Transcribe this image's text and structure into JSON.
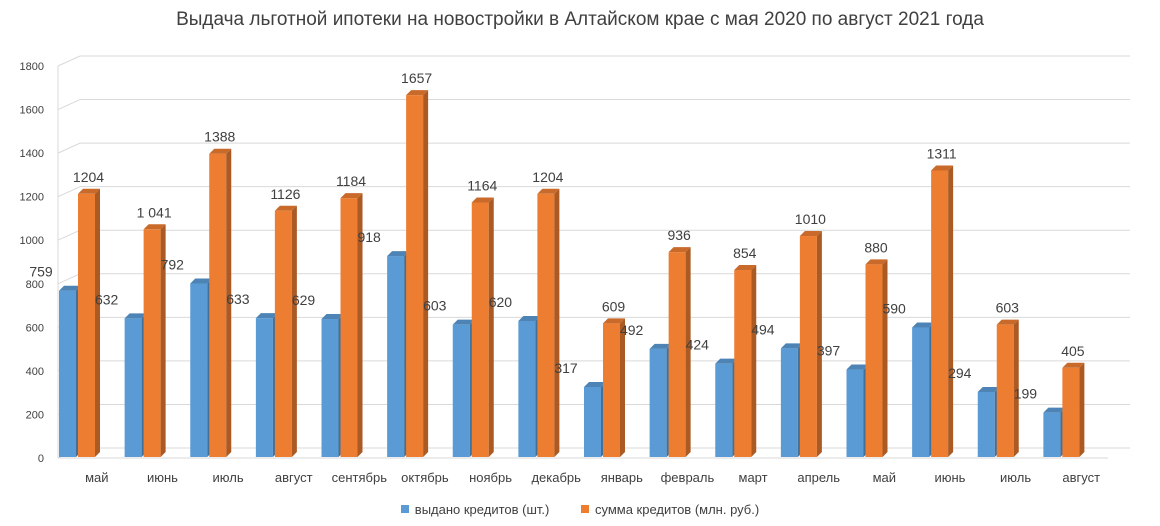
{
  "chart_data": {
    "type": "bar",
    "title": "Выдача льготной ипотеки на новостройки в Алтайском крае с мая 2020 по август 2021 года",
    "categories": [
      "май",
      "июнь",
      "июль",
      "август",
      "сентябрь",
      "октябрь",
      "ноябрь",
      "декабрь",
      "январь",
      "февраль",
      "март",
      "апрель",
      "май",
      "июнь",
      "июль",
      "август"
    ],
    "series": [
      {
        "name": "выдано кредитов (шт.)",
        "color": "#5b9bd5",
        "values": [
          759,
          632,
          792,
          633,
          629,
          918,
          603,
          620,
          317,
          492,
          424,
          494,
          397,
          590,
          294,
          199
        ],
        "labels": [
          "759",
          "632",
          "792",
          "633",
          "629",
          "918",
          "603",
          "620",
          "317",
          "492",
          "424",
          "494",
          "397",
          "590",
          "294",
          "199"
        ]
      },
      {
        "name": "сумма кредитов (млн. руб.)",
        "color": "#ed7d31",
        "values": [
          1204,
          1041,
          1388,
          1126,
          1184,
          1657,
          1164,
          1204,
          609,
          936,
          854,
          1010,
          880,
          1311,
          603,
          405
        ],
        "labels": [
          "1204",
          "1 041",
          "1388",
          "1126",
          "1184",
          "1657",
          "1164",
          "1204",
          "609",
          "936",
          "854",
          "1010",
          "880",
          "1311",
          "603",
          "405"
        ]
      }
    ],
    "ylim": [
      0,
      1800
    ],
    "yticks": [
      "0",
      "200",
      "400",
      "600",
      "800",
      "1000",
      "1200",
      "1400",
      "1600",
      "1800"
    ],
    "grid": true,
    "legend_position": "bottom"
  }
}
